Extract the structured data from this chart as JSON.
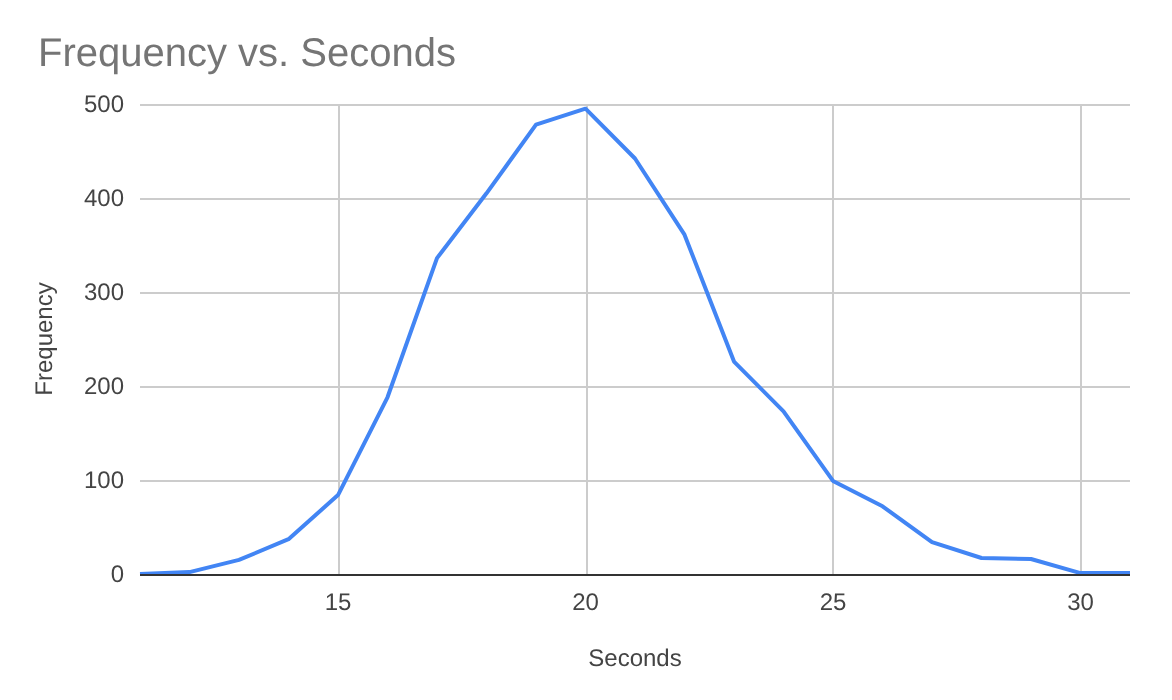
{
  "chart_data": {
    "type": "line",
    "title": "Frequency vs. Seconds",
    "xlabel": "Seconds",
    "ylabel": "Frequency",
    "x": [
      11,
      12,
      13,
      14,
      15,
      16,
      17,
      18,
      19,
      20,
      21,
      22,
      23,
      24,
      25,
      26,
      27,
      28,
      29,
      30,
      31
    ],
    "series": [
      {
        "color": "#4285f4",
        "values": [
          0,
          2,
          15,
          37,
          84,
          188,
          336,
          405,
          478,
          495,
          442,
          361,
          226,
          173,
          99,
          72,
          34,
          17,
          16,
          1,
          1
        ]
      }
    ],
    "xlim": [
      11,
      31
    ],
    "xticks": [
      15,
      20,
      25,
      30
    ],
    "ylim": [
      0,
      500
    ],
    "yticks": [
      0,
      100,
      200,
      300,
      400,
      500
    ],
    "grid": true,
    "marker": "none",
    "line_style": "solid"
  }
}
